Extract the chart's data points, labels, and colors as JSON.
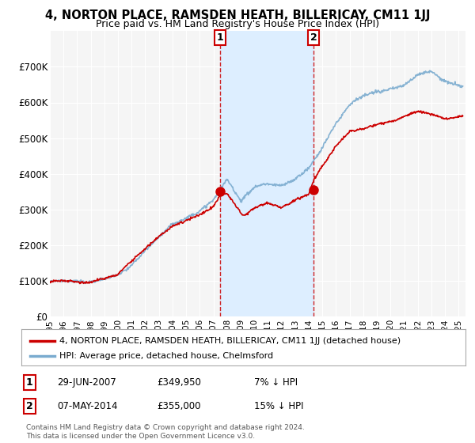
{
  "title": "4, NORTON PLACE, RAMSDEN HEATH, BILLERICAY, CM11 1JJ",
  "subtitle": "Price paid vs. HM Land Registry's House Price Index (HPI)",
  "ylabel_ticks": [
    "£0",
    "£100K",
    "£200K",
    "£300K",
    "£400K",
    "£500K",
    "£600K",
    "£700K"
  ],
  "ytick_vals": [
    0,
    100000,
    200000,
    300000,
    400000,
    500000,
    600000,
    700000
  ],
  "ylim": [
    0,
    800000
  ],
  "xlim_start": 1995.0,
  "xlim_end": 2025.5,
  "background_color": "#ffffff",
  "plot_bg_color": "#f5f5f5",
  "grid_color": "#ffffff",
  "red_line_color": "#cc0000",
  "blue_line_color": "#7aabcf",
  "shaded_region_color": "#ddeeff",
  "sale1_x": 2007.49,
  "sale1_y": 349950,
  "sale1_label": "1",
  "sale1_date": "29-JUN-2007",
  "sale1_price": "£349,950",
  "sale1_hpi": "7% ↓ HPI",
  "sale2_x": 2014.35,
  "sale2_y": 355000,
  "sale2_label": "2",
  "sale2_date": "07-MAY-2014",
  "sale2_price": "£355,000",
  "sale2_hpi": "15% ↓ HPI",
  "legend_red": "4, NORTON PLACE, RAMSDEN HEATH, BILLERICAY, CM11 1JJ (detached house)",
  "legend_blue": "HPI: Average price, detached house, Chelmsford",
  "footer": "Contains HM Land Registry data © Crown copyright and database right 2024.\nThis data is licensed under the Open Government Licence v3.0."
}
